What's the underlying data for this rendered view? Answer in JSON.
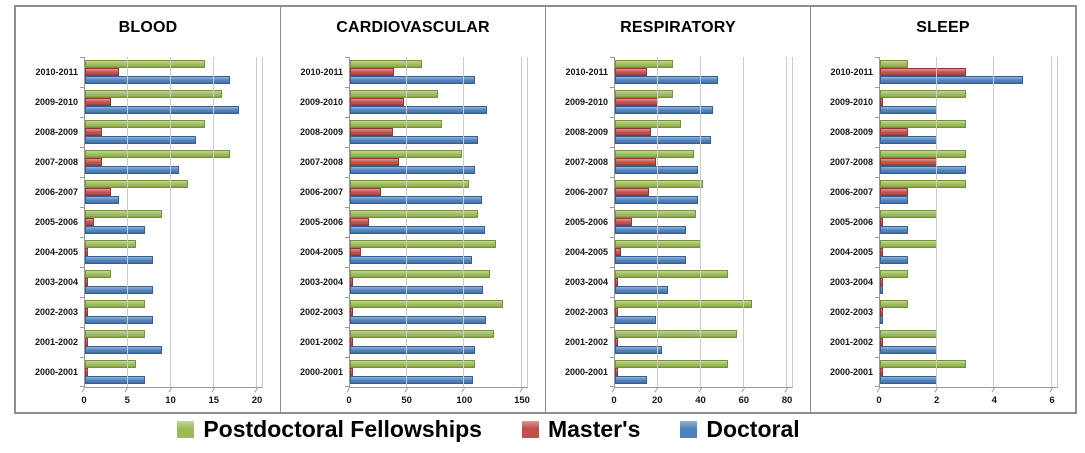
{
  "legend": {
    "items": [
      {
        "label": "Postdoctoral Fellowships",
        "color": "#9BBB59",
        "color_light": "#C3D69B",
        "color_dark": "#76923C"
      },
      {
        "label": "Master's",
        "color": "#C0504D",
        "color_light": "#D99694",
        "color_dark": "#943634"
      },
      {
        "label": "Doctoral",
        "color": "#4F81BD",
        "color_light": "#95B3D7",
        "color_dark": "#366092"
      }
    ]
  },
  "colors": {
    "panel_border": "#8e8e8e",
    "axis_line": "#9a9a9a",
    "gridline": "#cbcbcb",
    "title_text": "#000000"
  },
  "chart_data": [
    {
      "type": "bar",
      "orientation": "horizontal",
      "title": "BLOOD",
      "categories": [
        "2010-2011",
        "2009-2010",
        "2008-2009",
        "2007-2008",
        "2006-2007",
        "2005-2006",
        "2004-2005",
        "2003-2004",
        "2002-2003",
        "2001-2002",
        "2000-2001"
      ],
      "series": [
        {
          "name": "Postdoctoral Fellowships",
          "values": [
            14,
            16,
            14,
            17,
            12,
            9,
            6,
            3,
            7,
            7,
            6
          ]
        },
        {
          "name": "Master's",
          "values": [
            4,
            3,
            2,
            2,
            3,
            1,
            0,
            0,
            0,
            0,
            0
          ]
        },
        {
          "name": "Doctoral",
          "values": [
            17,
            18,
            13,
            11,
            4,
            7,
            8,
            8,
            8,
            9,
            7
          ]
        }
      ],
      "xlim": [
        0,
        20
      ],
      "xticks": [
        0,
        5,
        10,
        15,
        20
      ],
      "grid": true,
      "legend_position": "bottom-shared"
    },
    {
      "type": "bar",
      "orientation": "horizontal",
      "title": "CARDIOVASCULAR",
      "categories": [
        "2010-2011",
        "2009-2010",
        "2008-2009",
        "2007-2008",
        "2006-2007",
        "2005-2006",
        "2004-2005",
        "2003-2004",
        "2002-2003",
        "2001-2002",
        "2000-2001"
      ],
      "series": [
        {
          "name": "Postdoctoral Fellowships",
          "values": [
            63,
            77,
            81,
            98,
            104,
            112,
            128,
            123,
            134,
            126,
            110
          ]
        },
        {
          "name": "Master's",
          "values": [
            39,
            47,
            38,
            43,
            27,
            17,
            10,
            2,
            2,
            2,
            2
          ]
        },
        {
          "name": "Doctoral",
          "values": [
            110,
            120,
            112,
            110,
            116,
            118,
            107,
            117,
            119,
            110,
            108
          ]
        }
      ],
      "xlim": [
        0,
        150
      ],
      "xticks": [
        0,
        50,
        100,
        150
      ],
      "grid": true,
      "legend_position": "bottom-shared"
    },
    {
      "type": "bar",
      "orientation": "horizontal",
      "title": "RESPIRATORY",
      "categories": [
        "2010-2011",
        "2009-2010",
        "2008-2009",
        "2007-2008",
        "2006-2007",
        "2005-2006",
        "2004-2005",
        "2003-2004",
        "2002-2003",
        "2001-2002",
        "2000-2001"
      ],
      "series": [
        {
          "name": "Postdoctoral Fellowships",
          "values": [
            27,
            27,
            31,
            37,
            41,
            38,
            40,
            53,
            64,
            57,
            53
          ]
        },
        {
          "name": "Master's",
          "values": [
            15,
            20,
            17,
            19,
            16,
            8,
            3,
            1,
            1,
            1,
            1
          ]
        },
        {
          "name": "Doctoral",
          "values": [
            48,
            46,
            45,
            39,
            39,
            33,
            33,
            25,
            19,
            22,
            15
          ]
        }
      ],
      "xlim": [
        0,
        80
      ],
      "xticks": [
        0,
        20,
        40,
        60,
        80
      ],
      "grid": true,
      "legend_position": "bottom-shared"
    },
    {
      "type": "bar",
      "orientation": "horizontal",
      "title": "SLEEP",
      "categories": [
        "2010-2011",
        "2009-2010",
        "2008-2009",
        "2007-2008",
        "2006-2007",
        "2005-2006",
        "2004-2005",
        "2003-2004",
        "2002-2003",
        "2001-2002",
        "2000-2001"
      ],
      "series": [
        {
          "name": "Postdoctoral Fellowships",
          "values": [
            1,
            3,
            3,
            3,
            3,
            2,
            2,
            1,
            1,
            2,
            3
          ]
        },
        {
          "name": "Master's",
          "values": [
            3,
            0,
            1,
            2,
            1,
            0,
            0,
            0,
            0,
            0,
            0
          ]
        },
        {
          "name": "Doctoral",
          "values": [
            5,
            2,
            2,
            3,
            1,
            1,
            1,
            0,
            0,
            2,
            2
          ]
        }
      ],
      "xlim": [
        0,
        6
      ],
      "xticks": [
        0,
        2,
        4,
        6
      ],
      "grid": true,
      "legend_position": "bottom-shared"
    }
  ]
}
